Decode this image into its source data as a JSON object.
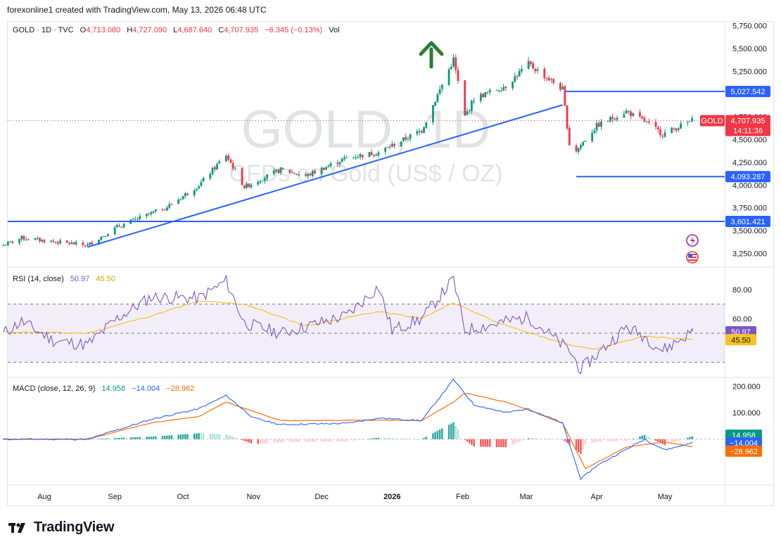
{
  "header": {
    "caption": "forexonline1 created with TradingView.com, May 13, 2026 06:48 UTC"
  },
  "legend": {
    "symbol": "GOLD · 1D · TVC",
    "o_label": "O",
    "o": "4,713.080",
    "h_label": "H",
    "h": "4,727.090",
    "l_label": "L",
    "l": "4,687.640",
    "c_label": "C",
    "c": "4,707.935",
    "change": "−6.345 (−0.13%)",
    "vol": "Vol"
  },
  "watermark": {
    "symbol": "GOLD, 1D",
    "description": "CFDs on Gold (US$ / OZ)"
  },
  "price_badge": {
    "symbol": "GOLD",
    "price": "4,707.935",
    "countdown": "14:11:36"
  },
  "levels": [
    {
      "value": 5027.542,
      "label": "5,027.542"
    },
    {
      "value": 4093.287,
      "label": "4,093.287"
    },
    {
      "value": 3601.421,
      "label": "3,601.421"
    }
  ],
  "rsi": {
    "label": "RSI (14, close)",
    "value": "50.97",
    "ma": "45.50",
    "value_num": 50.97,
    "ma_num": 45.5
  },
  "macd": {
    "label": "MACD (close, 12, 26, 9)",
    "hist": "14.958",
    "macd": "−14.004",
    "signal": "−28.962",
    "hist_num": 14.958,
    "macd_num": -14.004,
    "signal_num": -28.962
  },
  "colors": {
    "up": "#089981",
    "down": "#f23645",
    "line": "#2962ff",
    "rsi": "#7e57c2",
    "rsi_ma": "#f7c325",
    "macd": "#2962ff",
    "signal": "#ff6d00",
    "arrow": "#2e7d32"
  },
  "footer": {
    "brand": "TradingView"
  },
  "chart_data": [
    {
      "type": "candlestick",
      "title": "GOLD · 1D · TVC",
      "y_axis": {
        "range": [
          3100,
          5800
        ],
        "ticks": [
          3250,
          3500,
          3750,
          4000,
          4250,
          4500,
          4750,
          5000,
          5250,
          5500,
          5750
        ],
        "tick_labels": [
          "3,250.000",
          "3,500.000",
          "3,750.000",
          "4,000.000",
          "4,250.000",
          "4,500.000",
          "4,750.000",
          "5,000.000",
          "5,250.000",
          "5,500.000",
          "5,750.000"
        ]
      },
      "x_axis": {
        "labels": [
          "Aug",
          "Sep",
          "Oct",
          "Nov",
          "Dec",
          "2026",
          "Feb",
          "Mar",
          "Apr",
          "May"
        ],
        "label_dates": [
          "2025-08-01",
          "2025-09-01",
          "2025-10-01",
          "2025-11-01",
          "2025-12-01",
          "2026-01-01",
          "2026-02-01",
          "2026-03-01",
          "2026-04-01",
          "2026-05-01"
        ]
      },
      "series_anchors": {
        "dates": [
          "2025-07-14",
          "2025-07-22",
          "2025-08-05",
          "2025-08-20",
          "2025-09-02",
          "2025-09-24",
          "2025-10-08",
          "2025-10-20",
          "2025-10-28",
          "2025-11-13",
          "2025-11-24",
          "2025-12-12",
          "2025-12-26",
          "2026-01-14",
          "2026-01-28",
          "2026-02-02",
          "2026-02-06",
          "2026-02-20",
          "2026-03-02",
          "2026-03-17",
          "2026-03-20",
          "2026-03-23",
          "2026-04-01",
          "2026-04-14",
          "2026-04-22",
          "2026-04-30",
          "2026-05-13"
        ],
        "close": [
          3340,
          3420,
          3380,
          3340,
          3540,
          3760,
          4000,
          4330,
          3980,
          4170,
          4100,
          4300,
          4360,
          4600,
          5380,
          4750,
          4950,
          5090,
          5330,
          5050,
          4450,
          4380,
          4650,
          4810,
          4700,
          4560,
          4708
        ]
      },
      "trendline": {
        "from_date": "2025-08-20",
        "from_value": 3320,
        "to_date": "2026-03-17",
        "to_value": 4880
      },
      "horizontal_levels": [
        5027.542,
        4093.287,
        3601.421
      ],
      "annotations": [
        "up-arrow"
      ]
    },
    {
      "type": "line",
      "title": "RSI (14, close)",
      "y_axis": {
        "range": [
          20,
          95
        ],
        "tick_labels": [
          "80.00",
          "60.00"
        ]
      },
      "band": [
        30,
        70
      ],
      "series": [
        {
          "name": "RSI",
          "dates": [
            "2025-07-14",
            "2025-07-22",
            "2025-08-05",
            "2025-08-20",
            "2025-09-02",
            "2025-09-17",
            "2025-10-08",
            "2025-10-20",
            "2025-10-28",
            "2025-11-13",
            "2025-12-12",
            "2025-12-26",
            "2026-01-01",
            "2026-01-14",
            "2026-01-28",
            "2026-02-02",
            "2026-02-20",
            "2026-03-02",
            "2026-03-20",
            "2026-03-25",
            "2026-04-14",
            "2026-04-22",
            "2026-04-30",
            "2026-05-13"
          ],
          "values": [
            50,
            58,
            45,
            42,
            60,
            75,
            74,
            86,
            57,
            50,
            62,
            82,
            52,
            60,
            87,
            52,
            58,
            61,
            38,
            25,
            54,
            48,
            38,
            51
          ]
        },
        {
          "name": "RSI-based MA",
          "dates": [
            "2025-07-14",
            "2025-08-20",
            "2025-09-17",
            "2025-10-08",
            "2025-10-28",
            "2025-11-24",
            "2025-12-26",
            "2026-01-14",
            "2026-01-28",
            "2026-02-20",
            "2026-03-20",
            "2026-04-01",
            "2026-04-22",
            "2026-05-13"
          ],
          "values": [
            51,
            50,
            62,
            72,
            70,
            55,
            65,
            60,
            71,
            55,
            42,
            39,
            48,
            45.5
          ]
        }
      ]
    },
    {
      "type": "line",
      "title": "MACD (close, 12, 26, 9)",
      "y_axis": {
        "range": [
          -170,
          230
        ],
        "tick_labels": [
          "200.000",
          "100.000"
        ]
      },
      "series": [
        {
          "name": "MACD",
          "dates": [
            "2025-07-14",
            "2025-08-20",
            "2025-09-02",
            "2025-09-17",
            "2025-10-08",
            "2025-10-20",
            "2025-11-01",
            "2025-11-13",
            "2025-12-12",
            "2025-12-26",
            "2026-01-14",
            "2026-01-28",
            "2026-02-06",
            "2026-02-20",
            "2026-03-02",
            "2026-03-17",
            "2026-03-25",
            "2026-04-01",
            "2026-04-22",
            "2026-05-01",
            "2026-05-13"
          ],
          "values": [
            0,
            0,
            35,
            75,
            115,
            165,
            80,
            55,
            60,
            80,
            70,
            225,
            130,
            100,
            115,
            60,
            -150,
            -100,
            0,
            -40,
            -14
          ]
        },
        {
          "name": "Signal",
          "dates": [
            "2025-07-14",
            "2025-08-20",
            "2025-09-17",
            "2025-10-08",
            "2025-10-20",
            "2025-11-13",
            "2025-12-26",
            "2026-01-14",
            "2026-01-28",
            "2026-02-02",
            "2026-02-20",
            "2026-03-02",
            "2026-03-17",
            "2026-03-27",
            "2026-04-14",
            "2026-05-01",
            "2026-05-13"
          ],
          "values": [
            0,
            0,
            62,
            85,
            140,
            70,
            72,
            70,
            140,
            175,
            140,
            110,
            60,
            -110,
            -30,
            -10,
            -29
          ]
        }
      ]
    }
  ]
}
